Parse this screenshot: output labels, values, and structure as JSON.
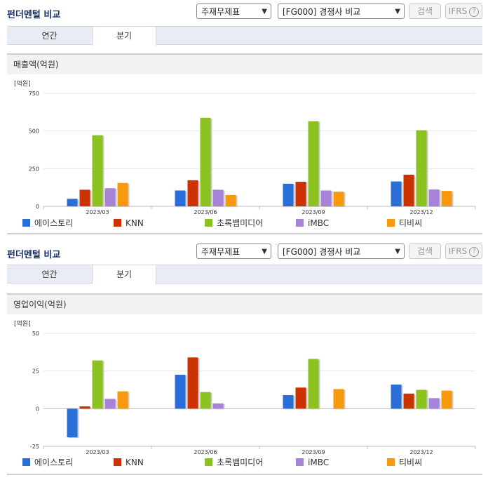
{
  "panels": [
    {
      "title": "펀더멘털 비교",
      "select_statement": "주재무제표",
      "select_compare": "[FG000] 경쟁사 비교",
      "search_button": "검색",
      "ifrs_button": "IFRS",
      "ifrs_help": "?",
      "tabs": [
        "연간",
        "분기"
      ],
      "active_tab": 1,
      "subheader": "매출액(억원)"
    },
    {
      "title": "펀더멘털 비교",
      "select_statement": "주재무제표",
      "select_compare": "[FG000] 경쟁사 비교",
      "search_button": "검색",
      "ifrs_button": "IFRS",
      "ifrs_help": "?",
      "tabs": [
        "연간",
        "분기"
      ],
      "active_tab": 1,
      "subheader": "영업이익(억원)"
    }
  ],
  "chart_data": [
    {
      "type": "bar",
      "title": "매출액(억원)",
      "unit_label": "[억원]",
      "categories": [
        "2023/03",
        "2023/06",
        "2023/09",
        "2023/12"
      ],
      "ylim": [
        0,
        750
      ],
      "yticks": [
        0,
        250,
        500,
        750
      ],
      "grid": true,
      "legend_position": "bottom",
      "series": [
        {
          "name": "에이스토리",
          "color": "#2a6ed8",
          "values": [
            50,
            105,
            150,
            165
          ]
        },
        {
          "name": "KNN",
          "color": "#cc3300",
          "values": [
            110,
            173,
            163,
            210
          ]
        },
        {
          "name": "초록뱀미디어",
          "color": "#8cc21f",
          "values": [
            472,
            588,
            565,
            505
          ]
        },
        {
          "name": "iMBC",
          "color": "#a882d8",
          "values": [
            120,
            110,
            105,
            112
          ]
        },
        {
          "name": "티비씨",
          "color": "#f7990e",
          "values": [
            155,
            75,
            97,
            102
          ]
        }
      ]
    },
    {
      "type": "bar",
      "title": "영업이익(억원)",
      "unit_label": "[억원]",
      "categories": [
        "2023/03",
        "2023/06",
        "2023/09",
        "2023/12"
      ],
      "ylim": [
        -25,
        50
      ],
      "yticks": [
        -25,
        0,
        25,
        50
      ],
      "grid": true,
      "legend_position": "bottom",
      "series": [
        {
          "name": "에이스토리",
          "color": "#2a6ed8",
          "values": [
            -19,
            22.5,
            9,
            16
          ]
        },
        {
          "name": "KNN",
          "color": "#cc3300",
          "values": [
            1.5,
            34,
            14,
            10
          ]
        },
        {
          "name": "초록뱀미디어",
          "color": "#8cc21f",
          "values": [
            32,
            11,
            33,
            12.5
          ]
        },
        {
          "name": "iMBC",
          "color": "#a882d8",
          "values": [
            6.5,
            3.5,
            0,
            7
          ]
        },
        {
          "name": "티비씨",
          "color": "#f7990e",
          "values": [
            11.5,
            0,
            13,
            12
          ]
        }
      ]
    }
  ]
}
